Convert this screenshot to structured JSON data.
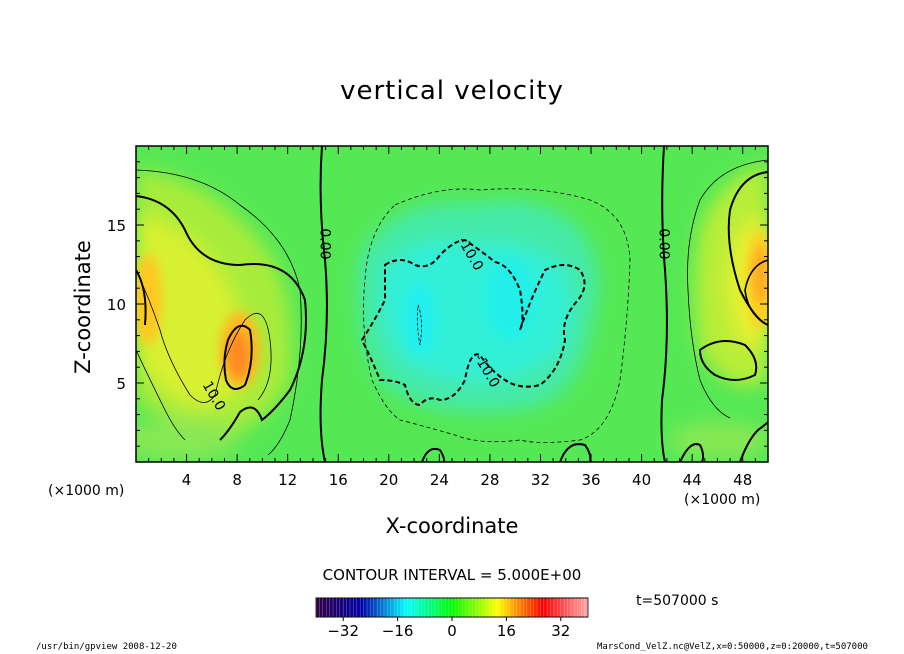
{
  "figure": {
    "title": "vertical velocity",
    "xlabel": "X-coordinate",
    "ylabel": "Z-coordinate",
    "x_unit": "(×1000 m)",
    "contour_interval": "CONTOUR INTERVAL = 5.000E+00",
    "time": "t=507000 s",
    "footer_left": "/usr/bin/gpview   2008-12-20",
    "footer_right": "MarsCond_VelZ.nc@VelZ,x=0:50000,z=0:20000,t=507000"
  },
  "chart_data": {
    "type": "heatmap",
    "variable": "VelZ",
    "xlim": [
      0,
      50
    ],
    "ylim": [
      0,
      20
    ],
    "x_ticks": [
      4,
      8,
      12,
      16,
      20,
      24,
      28,
      32,
      36,
      40,
      44,
      48
    ],
    "y_ticks": [
      5,
      10,
      15
    ],
    "contour_labels": [
      {
        "text": "0.00",
        "x": 15.0,
        "y": 13.8
      },
      {
        "text": "0.00",
        "x": 41.8,
        "y": 13.8
      },
      {
        "text": "-10.0",
        "x": 26.5,
        "y": 13.2
      },
      {
        "text": "-10.0",
        "x": 27.8,
        "y": 5.8
      },
      {
        "text": "10.0",
        "x": 6.2,
        "y": 4.2
      }
    ],
    "colorbar": {
      "ticks": [
        -32,
        -16,
        0,
        16,
        32
      ],
      "range": [
        -40,
        40
      ],
      "colors": [
        "#330044",
        "#0000aa",
        "#00ffff",
        "#00ff00",
        "#ffff00",
        "#ff0000",
        "#ffaaaa"
      ]
    },
    "contour_interval": 5.0,
    "time_s": 507000
  }
}
